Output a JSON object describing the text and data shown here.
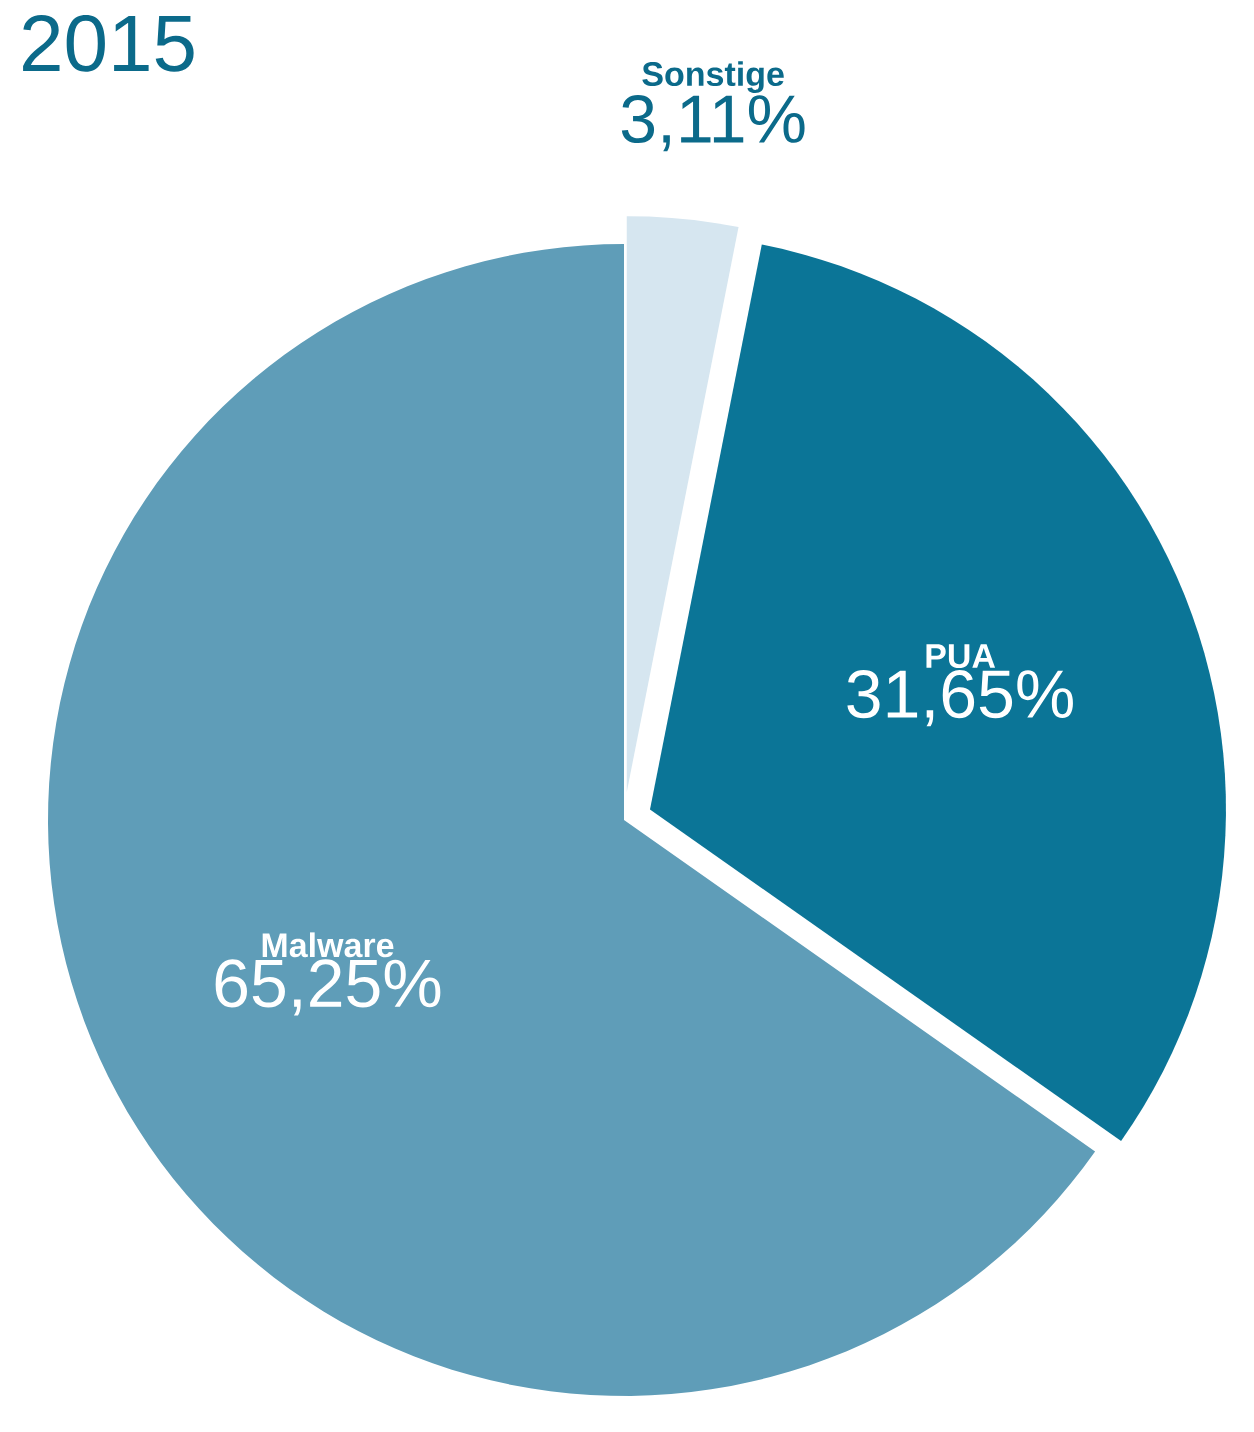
{
  "chart_data": {
    "type": "pie",
    "title": "2015",
    "categories": [
      "Sonstige",
      "PUA",
      "Malware"
    ],
    "values": [
      3.11,
      31.65,
      65.25
    ],
    "value_labels": [
      "3,11%",
      "31,65%",
      "65,25%"
    ],
    "colors": [
      "#d6e6f0",
      "#0b7597",
      "#5f9db8"
    ]
  }
}
